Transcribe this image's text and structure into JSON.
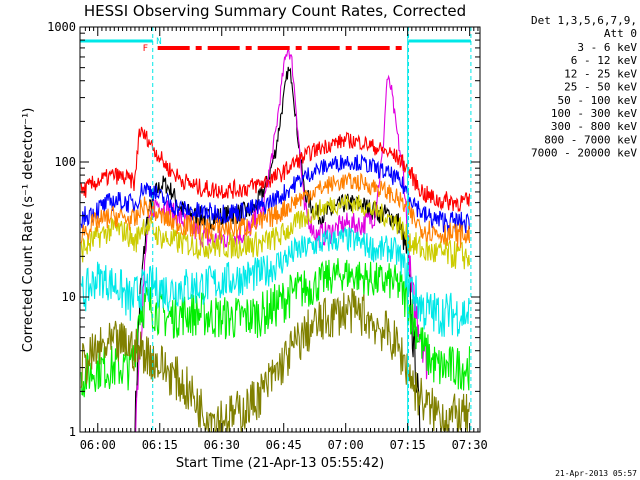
{
  "chart_data": {
    "type": "line",
    "title": "HESSI Observing Summary Count Rates, Corrected",
    "xlabel": "Start Time (21-Apr-13 05:55:42)",
    "ylabel": "Corrected Count Rate (s⁻¹ detector⁻¹)",
    "yscale": "log",
    "ylim": [
      1,
      1000
    ],
    "xlim_minutes": [
      -4.3,
      92.5
    ],
    "x_tick_labels": [
      "06:00",
      "06:15",
      "06:30",
      "06:45",
      "07:00",
      "07:15",
      "07:30"
    ],
    "x_ticks_minutes": [
      0,
      15,
      30,
      45,
      60,
      75,
      90
    ],
    "y_tick_labels": [
      "1",
      "10",
      "100",
      "1000"
    ],
    "y_ticks": [
      1,
      10,
      100,
      1000
    ],
    "legend_title": "Det 1,3,5,6,7,9,",
    "legend_subtitle": "Att 0",
    "legend_position": "right",
    "timestamp": "21-Apr-2013 05:57",
    "flag_labels": {
      "f": "F",
      "n": "N"
    },
    "vertical_markers_minutes": [
      13.3,
      75.2,
      90.3
    ],
    "solid_marker_minutes": [
      75.0
    ],
    "series": [
      {
        "name": "3 - 6 keV",
        "color": "#000000",
        "points": [
          [
            9,
            1
          ],
          [
            10,
            8
          ],
          [
            12,
            40
          ],
          [
            14,
            60
          ],
          [
            16,
            70
          ],
          [
            18,
            60
          ],
          [
            20,
            45
          ],
          [
            23,
            40
          ],
          [
            27,
            38
          ],
          [
            31,
            40
          ],
          [
            35,
            42
          ],
          [
            38,
            45
          ],
          [
            41,
            70
          ],
          [
            43,
            120
          ],
          [
            45,
            300
          ],
          [
            46,
            480
          ],
          [
            47,
            420
          ],
          [
            48,
            200
          ],
          [
            50,
            60
          ],
          [
            53,
            40
          ],
          [
            56,
            42
          ],
          [
            60,
            50
          ],
          [
            64,
            48
          ],
          [
            68,
            42
          ],
          [
            71,
            40
          ],
          [
            73,
            35
          ],
          [
            75,
            20
          ],
          [
            76,
            6
          ],
          [
            77,
            3
          ],
          [
            78,
            1
          ]
        ]
      },
      {
        "name": "6 - 12 keV",
        "color": "#e000e0",
        "points": [
          [
            9,
            1
          ],
          [
            10,
            4
          ],
          [
            12,
            30
          ],
          [
            14,
            50
          ],
          [
            17,
            45
          ],
          [
            20,
            38
          ],
          [
            24,
            30
          ],
          [
            28,
            26
          ],
          [
            32,
            28
          ],
          [
            36,
            30
          ],
          [
            40,
            45
          ],
          [
            43,
            160
          ],
          [
            45,
            500
          ],
          [
            46,
            720
          ],
          [
            47,
            550
          ],
          [
            48,
            250
          ],
          [
            50,
            45
          ],
          [
            53,
            28
          ],
          [
            56,
            30
          ],
          [
            60,
            35
          ],
          [
            64,
            34
          ],
          [
            67,
            40
          ],
          [
            69,
            120
          ],
          [
            70,
            420
          ],
          [
            71,
            350
          ],
          [
            72,
            200
          ],
          [
            74,
            80
          ],
          [
            75,
            30
          ],
          [
            76,
            10
          ],
          [
            78,
            6
          ],
          [
            80,
            3
          ]
        ]
      },
      {
        "name": "12 - 25 keV",
        "color": "#00ee00",
        "points": [
          [
            -4,
            2.5
          ],
          [
            0,
            3
          ],
          [
            5,
            3
          ],
          [
            8,
            3
          ],
          [
            9,
            4
          ],
          [
            10,
            8
          ],
          [
            12,
            9
          ],
          [
            14,
            8
          ],
          [
            17,
            7
          ],
          [
            20,
            7.5
          ],
          [
            25,
            7.5
          ],
          [
            30,
            7
          ],
          [
            35,
            7
          ],
          [
            40,
            7.5
          ],
          [
            44,
            9
          ],
          [
            48,
            11
          ],
          [
            52,
            12
          ],
          [
            56,
            14
          ],
          [
            60,
            15
          ],
          [
            64,
            14
          ],
          [
            68,
            13
          ],
          [
            71,
            13
          ],
          [
            73,
            12
          ],
          [
            75,
            9
          ],
          [
            77,
            6
          ],
          [
            79,
            4
          ],
          [
            82,
            3
          ],
          [
            90,
            3
          ]
        ]
      },
      {
        "name": "25 - 50 keV",
        "color": "#00e8e8",
        "points": [
          [
            -4,
            10
          ],
          [
            0,
            14
          ],
          [
            5,
            12
          ],
          [
            8,
            9
          ],
          [
            10,
            11
          ],
          [
            12,
            12
          ],
          [
            14,
            12
          ],
          [
            17,
            11
          ],
          [
            20,
            12
          ],
          [
            25,
            12
          ],
          [
            30,
            13
          ],
          [
            35,
            14
          ],
          [
            40,
            15
          ],
          [
            44,
            18
          ],
          [
            48,
            22
          ],
          [
            52,
            24
          ],
          [
            56,
            26
          ],
          [
            60,
            27
          ],
          [
            64,
            25
          ],
          [
            68,
            22
          ],
          [
            71,
            23
          ],
          [
            73,
            20
          ],
          [
            75,
            14
          ],
          [
            77,
            10
          ],
          [
            79,
            8
          ],
          [
            82,
            7.5
          ],
          [
            90,
            7.5
          ]
        ]
      },
      {
        "name": "50 - 100 keV",
        "color": "#cccc00",
        "points": [
          [
            -4,
            22
          ],
          [
            0,
            28
          ],
          [
            4,
            32
          ],
          [
            7,
            30
          ],
          [
            9,
            25
          ],
          [
            11,
            35
          ],
          [
            13,
            32
          ],
          [
            15,
            28
          ],
          [
            18,
            26
          ],
          [
            21,
            25
          ],
          [
            25,
            24
          ],
          [
            30,
            24
          ],
          [
            35,
            24
          ],
          [
            40,
            25
          ],
          [
            44,
            28
          ],
          [
            48,
            35
          ],
          [
            52,
            42
          ],
          [
            56,
            48
          ],
          [
            60,
            50
          ],
          [
            64,
            48
          ],
          [
            68,
            42
          ],
          [
            71,
            38
          ],
          [
            73,
            34
          ],
          [
            75,
            27
          ],
          [
            77,
            24
          ],
          [
            79,
            22
          ],
          [
            82,
            21
          ],
          [
            90,
            20
          ]
        ]
      },
      {
        "name": "100 - 300 keV",
        "color": "#ff0000",
        "points": [
          [
            -4,
            60
          ],
          [
            0,
            72
          ],
          [
            4,
            80
          ],
          [
            7,
            75
          ],
          [
            9,
            70
          ],
          [
            10,
            170
          ],
          [
            12,
            150
          ],
          [
            14,
            120
          ],
          [
            17,
            90
          ],
          [
            20,
            75
          ],
          [
            24,
            65
          ],
          [
            28,
            62
          ],
          [
            32,
            62
          ],
          [
            36,
            64
          ],
          [
            40,
            70
          ],
          [
            44,
            80
          ],
          [
            48,
            100
          ],
          [
            52,
            120
          ],
          [
            56,
            135
          ],
          [
            60,
            145
          ],
          [
            64,
            140
          ],
          [
            68,
            125
          ],
          [
            71,
            115
          ],
          [
            73,
            105
          ],
          [
            75,
            90
          ],
          [
            77,
            70
          ],
          [
            79,
            58
          ],
          [
            82,
            52
          ],
          [
            90,
            50
          ]
        ]
      },
      {
        "name": "300 - 800 keV",
        "color": "#0000ff",
        "points": [
          [
            -4,
            38
          ],
          [
            0,
            45
          ],
          [
            4,
            52
          ],
          [
            7,
            50
          ],
          [
            9,
            48
          ],
          [
            11,
            65
          ],
          [
            13,
            62
          ],
          [
            15,
            55
          ],
          [
            18,
            48
          ],
          [
            21,
            44
          ],
          [
            25,
            42
          ],
          [
            30,
            42
          ],
          [
            35,
            43
          ],
          [
            40,
            47
          ],
          [
            44,
            55
          ],
          [
            48,
            70
          ],
          [
            52,
            85
          ],
          [
            56,
            95
          ],
          [
            60,
            102
          ],
          [
            64,
            98
          ],
          [
            68,
            88
          ],
          [
            71,
            80
          ],
          [
            73,
            72
          ],
          [
            75,
            60
          ],
          [
            77,
            48
          ],
          [
            79,
            40
          ],
          [
            82,
            37
          ],
          [
            90,
            35
          ]
        ]
      },
      {
        "name": "800 - 7000 keV",
        "color": "#ff7f00",
        "points": [
          [
            -4,
            30
          ],
          [
            0,
            36
          ],
          [
            4,
            40
          ],
          [
            7,
            38
          ],
          [
            9,
            36
          ],
          [
            11,
            48
          ],
          [
            13,
            44
          ],
          [
            15,
            40
          ],
          [
            18,
            36
          ],
          [
            21,
            34
          ],
          [
            25,
            32
          ],
          [
            30,
            32
          ],
          [
            35,
            33
          ],
          [
            40,
            36
          ],
          [
            44,
            42
          ],
          [
            48,
            52
          ],
          [
            52,
            60
          ],
          [
            56,
            68
          ],
          [
            60,
            72
          ],
          [
            64,
            70
          ],
          [
            68,
            64
          ],
          [
            71,
            58
          ],
          [
            73,
            52
          ],
          [
            75,
            44
          ],
          [
            77,
            36
          ],
          [
            79,
            32
          ],
          [
            82,
            30
          ],
          [
            90,
            28
          ]
        ]
      },
      {
        "name": "7000 - 20000 keV",
        "color": "#808000",
        "points": [
          [
            -4,
            3
          ],
          [
            0,
            4
          ],
          [
            4,
            4.5
          ],
          [
            7,
            4.5
          ],
          [
            9,
            4
          ],
          [
            11,
            4
          ],
          [
            13,
            3.5
          ],
          [
            16,
            3
          ],
          [
            19,
            2.5
          ],
          [
            22,
            2
          ],
          [
            25,
            1.5
          ],
          [
            28,
            1.3
          ],
          [
            32,
            1.3
          ],
          [
            36,
            1.5
          ],
          [
            40,
            2
          ],
          [
            44,
            3
          ],
          [
            48,
            4.5
          ],
          [
            52,
            6
          ],
          [
            56,
            7
          ],
          [
            60,
            8
          ],
          [
            64,
            7.5
          ],
          [
            68,
            6
          ],
          [
            71,
            5
          ],
          [
            73,
            4
          ],
          [
            75,
            3
          ],
          [
            77,
            2
          ],
          [
            80,
            1.5
          ],
          [
            85,
            1.3
          ],
          [
            90,
            1.3
          ]
        ]
      }
    ]
  }
}
